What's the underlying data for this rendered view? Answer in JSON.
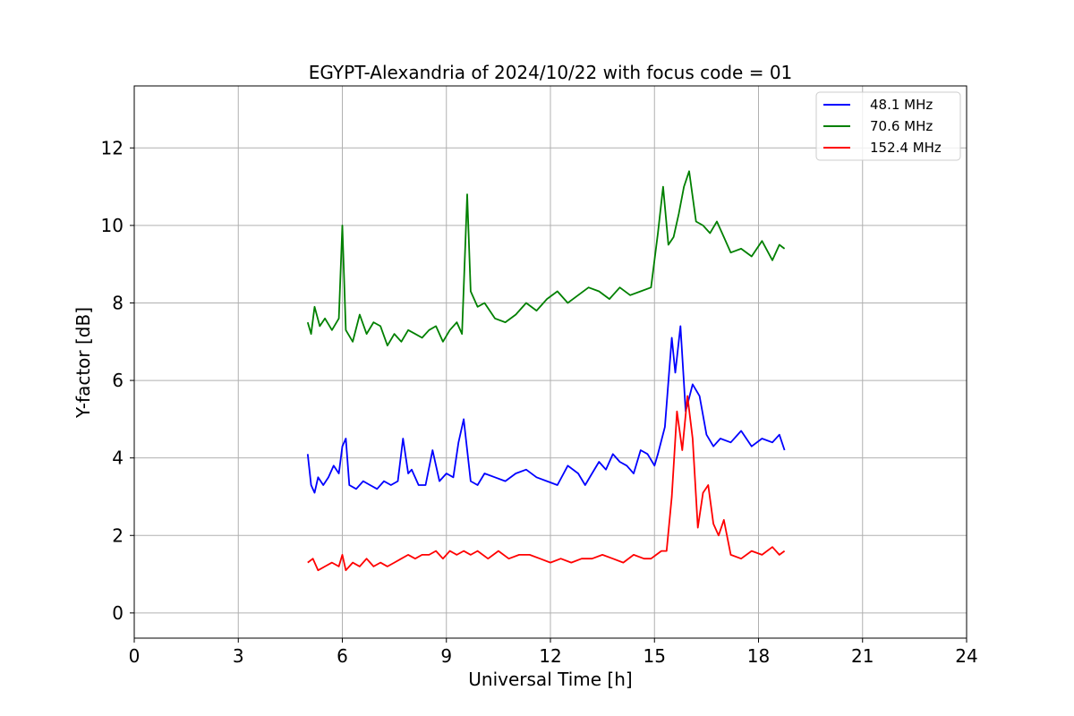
{
  "chart_data": {
    "type": "line",
    "title": "EGYPT-Alexandria of 2024/10/22 with focus code = 01",
    "xlabel": "Universal Time [h]",
    "ylabel": "Y-factor [dB]",
    "xlim": [
      0,
      24
    ],
    "ylim": [
      -0.65,
      13.6
    ],
    "xticks": [
      0,
      3,
      6,
      9,
      12,
      15,
      18,
      21,
      24
    ],
    "yticks": [
      0,
      2,
      4,
      6,
      8,
      10,
      12
    ],
    "grid": true,
    "legend_position": "top-right",
    "series": [
      {
        "name": "48.1 MHz",
        "color": "#0000ff",
        "x": [
          5.0,
          5.1,
          5.2,
          5.3,
          5.45,
          5.6,
          5.75,
          5.9,
          6.0,
          6.1,
          6.2,
          6.4,
          6.6,
          6.8,
          7.0,
          7.2,
          7.4,
          7.6,
          7.75,
          7.9,
          8.0,
          8.2,
          8.4,
          8.6,
          8.8,
          9.0,
          9.2,
          9.35,
          9.5,
          9.7,
          9.9,
          10.1,
          10.4,
          10.7,
          11.0,
          11.3,
          11.6,
          11.9,
          12.2,
          12.5,
          12.8,
          13.0,
          13.2,
          13.4,
          13.6,
          13.8,
          14.0,
          14.2,
          14.4,
          14.6,
          14.8,
          15.0,
          15.1,
          15.3,
          15.5,
          15.6,
          15.75,
          15.9,
          16.1,
          16.3,
          16.5,
          16.7,
          16.9,
          17.2,
          17.5,
          17.8,
          18.1,
          18.4,
          18.6,
          18.75
        ],
        "y": [
          4.1,
          3.3,
          3.1,
          3.5,
          3.3,
          3.5,
          3.8,
          3.6,
          4.3,
          4.5,
          3.3,
          3.2,
          3.4,
          3.3,
          3.2,
          3.4,
          3.3,
          3.4,
          4.5,
          3.6,
          3.7,
          3.3,
          3.3,
          4.2,
          3.4,
          3.6,
          3.5,
          4.4,
          5.0,
          3.4,
          3.3,
          3.6,
          3.5,
          3.4,
          3.6,
          3.7,
          3.5,
          3.4,
          3.3,
          3.8,
          3.6,
          3.3,
          3.6,
          3.9,
          3.7,
          4.1,
          3.9,
          3.8,
          3.6,
          4.2,
          4.1,
          3.8,
          4.1,
          4.8,
          7.1,
          6.2,
          7.4,
          5.2,
          5.9,
          5.6,
          4.6,
          4.3,
          4.5,
          4.4,
          4.7,
          4.3,
          4.5,
          4.4,
          4.6,
          4.2
        ]
      },
      {
        "name": "70.6 MHz",
        "color": "#008000",
        "x": [
          5.0,
          5.1,
          5.2,
          5.35,
          5.5,
          5.7,
          5.9,
          6.0,
          6.1,
          6.3,
          6.5,
          6.7,
          6.9,
          7.1,
          7.3,
          7.5,
          7.7,
          7.9,
          8.1,
          8.3,
          8.5,
          8.7,
          8.9,
          9.1,
          9.3,
          9.45,
          9.6,
          9.7,
          9.9,
          10.1,
          10.4,
          10.7,
          11.0,
          11.3,
          11.6,
          11.9,
          12.2,
          12.5,
          12.8,
          13.1,
          13.4,
          13.7,
          14.0,
          14.3,
          14.6,
          14.9,
          15.1,
          15.25,
          15.4,
          15.55,
          15.7,
          15.85,
          16.0,
          16.2,
          16.4,
          16.6,
          16.8,
          17.0,
          17.2,
          17.5,
          17.8,
          18.1,
          18.4,
          18.6,
          18.75
        ],
        "y": [
          7.5,
          7.2,
          7.9,
          7.4,
          7.6,
          7.3,
          7.6,
          10.0,
          7.3,
          7.0,
          7.7,
          7.2,
          7.5,
          7.4,
          6.9,
          7.2,
          7.0,
          7.3,
          7.2,
          7.1,
          7.3,
          7.4,
          7.0,
          7.3,
          7.5,
          7.2,
          10.8,
          8.3,
          7.9,
          8.0,
          7.6,
          7.5,
          7.7,
          8.0,
          7.8,
          8.1,
          8.3,
          8.0,
          8.2,
          8.4,
          8.3,
          8.1,
          8.4,
          8.2,
          8.3,
          8.4,
          9.8,
          11.0,
          9.5,
          9.7,
          10.3,
          11.0,
          11.4,
          10.1,
          10.0,
          9.8,
          10.1,
          9.7,
          9.3,
          9.4,
          9.2,
          9.6,
          9.1,
          9.5,
          9.4
        ]
      },
      {
        "name": "152.4 MHz",
        "color": "#ff0000",
        "x": [
          5.0,
          5.15,
          5.3,
          5.5,
          5.7,
          5.9,
          6.0,
          6.1,
          6.3,
          6.5,
          6.7,
          6.9,
          7.1,
          7.3,
          7.5,
          7.7,
          7.9,
          8.1,
          8.3,
          8.5,
          8.7,
          8.9,
          9.1,
          9.3,
          9.5,
          9.7,
          9.9,
          10.2,
          10.5,
          10.8,
          11.1,
          11.4,
          11.7,
          12.0,
          12.3,
          12.6,
          12.9,
          13.2,
          13.5,
          13.8,
          14.1,
          14.4,
          14.7,
          14.9,
          15.05,
          15.2,
          15.35,
          15.5,
          15.65,
          15.8,
          15.95,
          16.1,
          16.25,
          16.4,
          16.55,
          16.7,
          16.85,
          17.0,
          17.2,
          17.5,
          17.8,
          18.1,
          18.4,
          18.6,
          18.75
        ],
        "y": [
          1.3,
          1.4,
          1.1,
          1.2,
          1.3,
          1.2,
          1.5,
          1.1,
          1.3,
          1.2,
          1.4,
          1.2,
          1.3,
          1.2,
          1.3,
          1.4,
          1.5,
          1.4,
          1.5,
          1.5,
          1.6,
          1.4,
          1.6,
          1.5,
          1.6,
          1.5,
          1.6,
          1.4,
          1.6,
          1.4,
          1.5,
          1.5,
          1.4,
          1.3,
          1.4,
          1.3,
          1.4,
          1.4,
          1.5,
          1.4,
          1.3,
          1.5,
          1.4,
          1.4,
          1.5,
          1.6,
          1.6,
          3.0,
          5.2,
          4.2,
          5.6,
          4.5,
          2.2,
          3.1,
          3.3,
          2.3,
          2.0,
          2.4,
          1.5,
          1.4,
          1.6,
          1.5,
          1.7,
          1.5,
          1.6
        ]
      }
    ]
  }
}
